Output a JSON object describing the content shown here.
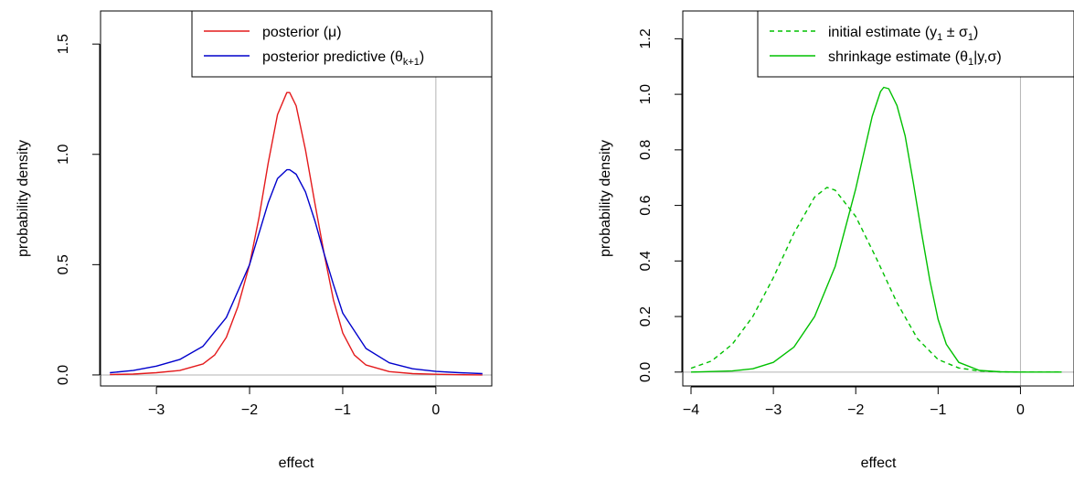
{
  "chart_data": [
    {
      "type": "line",
      "xlabel": "effect",
      "ylabel": "probability density",
      "xlim": [
        -3.6,
        0.6
      ],
      "ylim": [
        -0.05,
        1.65
      ],
      "xticks": [
        -3,
        -2,
        -1,
        0
      ],
      "xtick_labels": [
        "−3",
        "−2",
        "−1",
        "0"
      ],
      "yticks": [
        0.0,
        0.5,
        1.0,
        1.5
      ],
      "ytick_labels": [
        "0.0",
        "0.5",
        "1.0",
        "1.5"
      ],
      "vline": 0,
      "hline": 0,
      "legend_position": "top-right",
      "series": [
        {
          "name": "posterior (μ)",
          "legend_main": "posterior (μ)",
          "color": "#e41a1c",
          "dash": "solid",
          "x": [
            -3.5,
            -3.25,
            -3.0,
            -2.75,
            -2.5,
            -2.375,
            -2.25,
            -2.125,
            -2.0,
            -1.9,
            -1.8,
            -1.7,
            -1.6,
            -1.57,
            -1.5,
            -1.4,
            -1.3,
            -1.2,
            -1.1,
            -1.0,
            -0.875,
            -0.75,
            -0.5,
            -0.25,
            0.0,
            0.25,
            0.5
          ],
          "y": [
            0.002,
            0.004,
            0.01,
            0.02,
            0.05,
            0.09,
            0.17,
            0.31,
            0.5,
            0.71,
            0.96,
            1.18,
            1.28,
            1.28,
            1.22,
            1.02,
            0.78,
            0.55,
            0.34,
            0.19,
            0.09,
            0.045,
            0.015,
            0.006,
            0.003,
            0.001,
            0.0
          ]
        },
        {
          "name": "posterior predictive (θ_{k+1})",
          "legend_main": "posterior predictive (θ",
          "legend_sub": "k+1",
          "legend_tail": ")",
          "color": "#0000cc",
          "dash": "solid",
          "x": [
            -3.5,
            -3.25,
            -3.0,
            -2.75,
            -2.5,
            -2.25,
            -2.0,
            -1.9,
            -1.8,
            -1.7,
            -1.6,
            -1.57,
            -1.5,
            -1.4,
            -1.3,
            -1.2,
            -1.1,
            -1.0,
            -0.75,
            -0.5,
            -0.25,
            0.0,
            0.25,
            0.5
          ],
          "y": [
            0.01,
            0.02,
            0.04,
            0.07,
            0.13,
            0.26,
            0.5,
            0.64,
            0.78,
            0.89,
            0.93,
            0.93,
            0.91,
            0.83,
            0.7,
            0.55,
            0.41,
            0.28,
            0.12,
            0.055,
            0.028,
            0.016,
            0.01,
            0.006
          ]
        }
      ]
    },
    {
      "type": "line",
      "xlabel": "effect",
      "ylabel": "probability density",
      "xlim": [
        -4.1,
        0.65
      ],
      "ylim": [
        -0.05,
        1.3
      ],
      "xticks": [
        -4,
        -3,
        -2,
        -1,
        0
      ],
      "xtick_labels": [
        "−4",
        "−3",
        "−2",
        "−1",
        "0"
      ],
      "yticks": [
        0.0,
        0.2,
        0.4,
        0.6,
        0.8,
        1.0,
        1.2
      ],
      "ytick_labels": [
        "0.0",
        "0.2",
        "0.4",
        "0.6",
        "0.8",
        "1.0",
        "1.2"
      ],
      "vline": 0,
      "hline": 0,
      "legend_position": "top-right",
      "series": [
        {
          "name": "initial estimate (y₁ ± σ₁)",
          "legend_main": "initial estimate (y",
          "legend_sub": "1",
          "legend_tail": " ± σ",
          "legend_sub2": "1",
          "legend_tail2": ")",
          "color": "#00c000",
          "dash": "dashed",
          "x": [
            -4.0,
            -3.75,
            -3.5,
            -3.25,
            -3.0,
            -2.75,
            -2.5,
            -2.35,
            -2.25,
            -2.0,
            -1.75,
            -1.5,
            -1.25,
            -1.0,
            -0.75,
            -0.5,
            -0.25,
            0.0,
            0.25,
            0.5
          ],
          "y": [
            0.014,
            0.04,
            0.1,
            0.2,
            0.34,
            0.5,
            0.63,
            0.665,
            0.655,
            0.56,
            0.41,
            0.25,
            0.12,
            0.045,
            0.015,
            0.004,
            0.001,
            0.0,
            0.0,
            0.0
          ]
        },
        {
          "name": "shrinkage estimate (θ₁|y,σ)",
          "legend_main": "shrinkage estimate (θ",
          "legend_sub": "1",
          "legend_tail": "|y,σ)",
          "color": "#00c000",
          "dash": "solid",
          "x": [
            -4.0,
            -3.5,
            -3.25,
            -3.0,
            -2.75,
            -2.5,
            -2.25,
            -2.0,
            -1.9,
            -1.8,
            -1.7,
            -1.66,
            -1.6,
            -1.5,
            -1.4,
            -1.3,
            -1.2,
            -1.1,
            -1.0,
            -0.9,
            -0.75,
            -0.5,
            -0.25,
            0.0,
            0.25,
            0.5
          ],
          "y": [
            0.0,
            0.004,
            0.012,
            0.035,
            0.09,
            0.2,
            0.38,
            0.66,
            0.79,
            0.92,
            1.01,
            1.025,
            1.02,
            0.96,
            0.85,
            0.68,
            0.5,
            0.33,
            0.19,
            0.1,
            0.035,
            0.006,
            0.001,
            0.0,
            0.0,
            0.0
          ]
        }
      ]
    }
  ]
}
